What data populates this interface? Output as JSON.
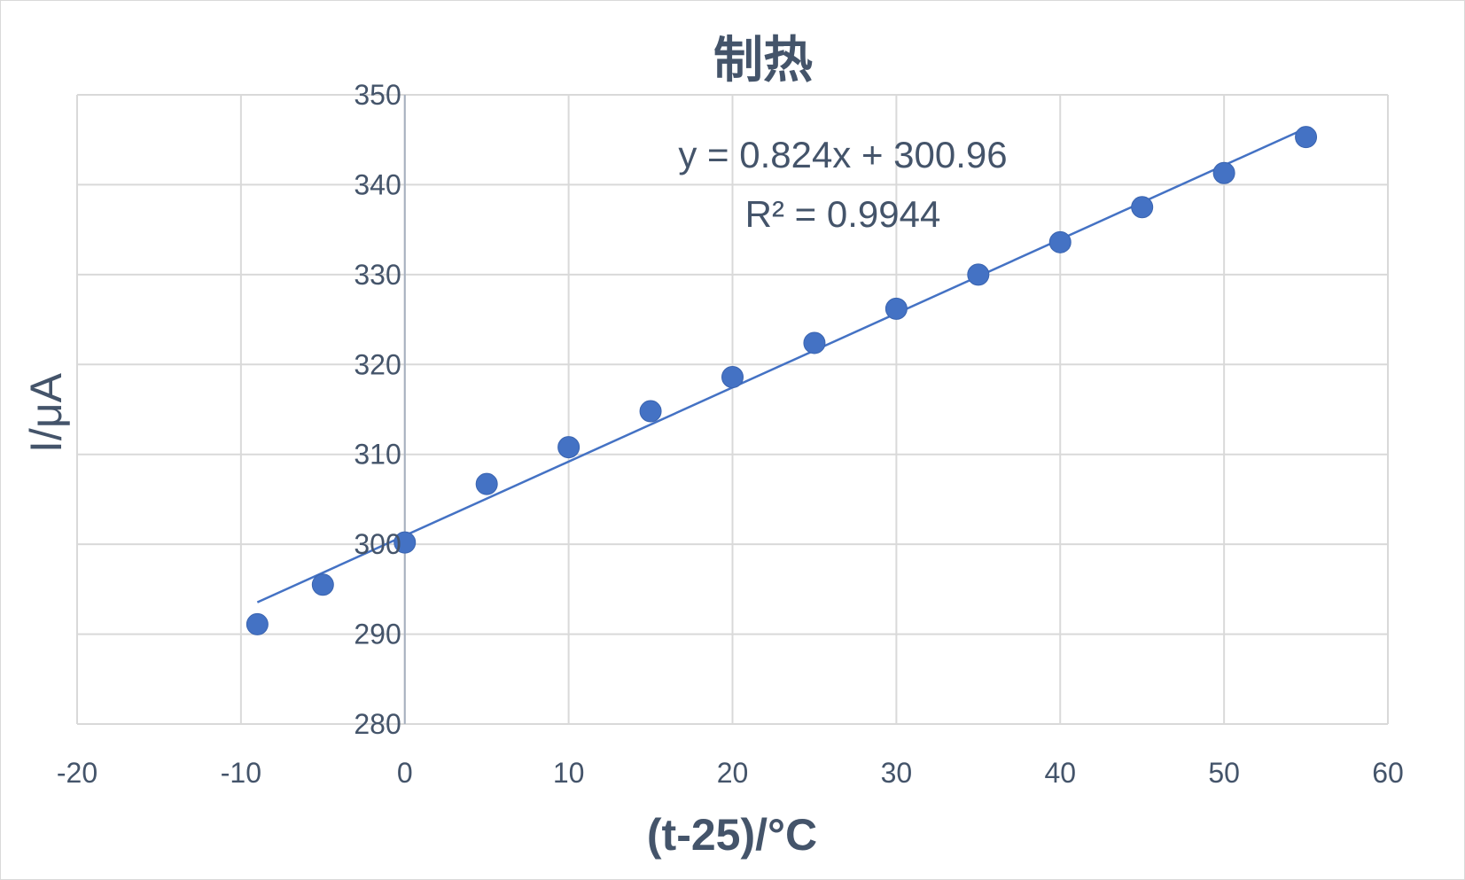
{
  "chart_data": {
    "type": "scatter",
    "title": "制热",
    "xlabel": "(t-25)/°C",
    "ylabel": "I/μA",
    "xlim": [
      -20,
      60
    ],
    "ylim": [
      280,
      350
    ],
    "x_ticks": [
      -20,
      -10,
      0,
      10,
      20,
      30,
      40,
      50,
      60
    ],
    "y_ticks": [
      280,
      290,
      300,
      310,
      320,
      330,
      340,
      350
    ],
    "grid": true,
    "legend": "none",
    "series": [
      {
        "x": [
          -9,
          -5,
          0,
          5,
          10,
          15,
          20,
          25,
          30,
          35,
          40,
          45,
          50,
          55
        ],
        "y": [
          291.1,
          295.5,
          300.2,
          306.7,
          310.8,
          314.8,
          318.6,
          322.4,
          326.2,
          330.0,
          333.6,
          337.5,
          341.3,
          345.3
        ],
        "color": "#4472c4"
      }
    ],
    "trendline": {
      "type": "linear",
      "slope": 0.824,
      "intercept": 300.96,
      "x_range": [
        -9,
        55
      ],
      "equation": "y = 0.824x + 300.96",
      "r_squared": "R² = 0.9944",
      "color": "#4472c4"
    }
  }
}
